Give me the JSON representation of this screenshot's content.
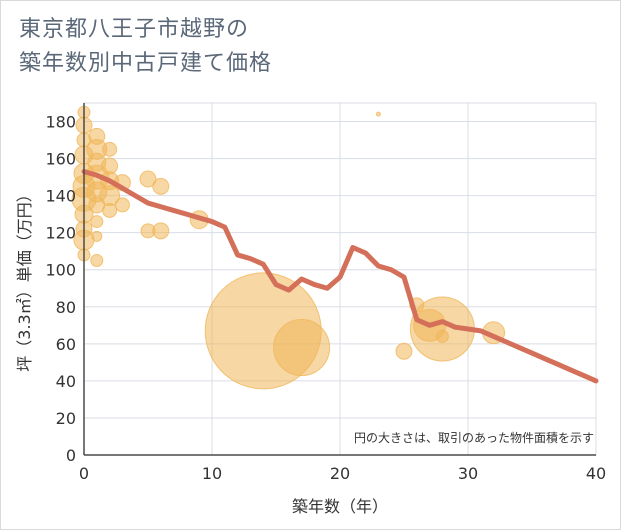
{
  "title_lines": [
    "東京都八王子市越野の",
    "築年数別中古戸建て価格"
  ],
  "chart_data": {
    "type": "scatter",
    "title": "東京都八王子市越野の築年数別中古戸建て価格",
    "xlabel": "築年数（年）",
    "ylabel": "坪（3.3㎡）単価（万円）",
    "xlim": [
      0,
      40
    ],
    "ylim": [
      0,
      190
    ],
    "xticks": [
      0,
      10,
      20,
      30,
      40
    ],
    "yticks": [
      0,
      20,
      40,
      60,
      80,
      100,
      120,
      140,
      160,
      180
    ],
    "note": "円の大きさは、取引のあった物件面積を示す",
    "colors": {
      "bubble": "#f0b75a",
      "line": "#d4705a",
      "grid": "#d9dde6",
      "axis": "#4a4a4a",
      "text": "#333333"
    },
    "bubbles": [
      {
        "x": 0,
        "y": 185,
        "r": 6
      },
      {
        "x": 0,
        "y": 178,
        "r": 8
      },
      {
        "x": 0,
        "y": 170,
        "r": 7
      },
      {
        "x": 0,
        "y": 162,
        "r": 9
      },
      {
        "x": 0,
        "y": 152,
        "r": 10
      },
      {
        "x": 0,
        "y": 145,
        "r": 11
      },
      {
        "x": 0,
        "y": 138,
        "r": 12
      },
      {
        "x": 0,
        "y": 130,
        "r": 9
      },
      {
        "x": 0,
        "y": 122,
        "r": 8
      },
      {
        "x": 0,
        "y": 116,
        "r": 10
      },
      {
        "x": 0,
        "y": 108,
        "r": 6
      },
      {
        "x": 1,
        "y": 172,
        "r": 8
      },
      {
        "x": 1,
        "y": 165,
        "r": 10
      },
      {
        "x": 1,
        "y": 158,
        "r": 9
      },
      {
        "x": 1,
        "y": 150,
        "r": 12
      },
      {
        "x": 1,
        "y": 142,
        "r": 10
      },
      {
        "x": 1,
        "y": 135,
        "r": 8
      },
      {
        "x": 1,
        "y": 126,
        "r": 6
      },
      {
        "x": 1,
        "y": 118,
        "r": 5
      },
      {
        "x": 1,
        "y": 105,
        "r": 6
      },
      {
        "x": 2,
        "y": 165,
        "r": 7
      },
      {
        "x": 2,
        "y": 156,
        "r": 8
      },
      {
        "x": 2,
        "y": 148,
        "r": 9
      },
      {
        "x": 2,
        "y": 140,
        "r": 10
      },
      {
        "x": 2,
        "y": 132,
        "r": 7
      },
      {
        "x": 3,
        "y": 147,
        "r": 8
      },
      {
        "x": 3,
        "y": 135,
        "r": 7
      },
      {
        "x": 5,
        "y": 149,
        "r": 8
      },
      {
        "x": 5,
        "y": 121,
        "r": 7
      },
      {
        "x": 6,
        "y": 145,
        "r": 8
      },
      {
        "x": 6,
        "y": 121,
        "r": 8
      },
      {
        "x": 9,
        "y": 127,
        "r": 9
      },
      {
        "x": 14,
        "y": 67,
        "r": 58
      },
      {
        "x": 17,
        "y": 58,
        "r": 28
      },
      {
        "x": 23,
        "y": 184,
        "r": 2
      },
      {
        "x": 25,
        "y": 56,
        "r": 8
      },
      {
        "x": 26,
        "y": 81,
        "r": 7
      },
      {
        "x": 27,
        "y": 70,
        "r": 16
      },
      {
        "x": 28,
        "y": 68,
        "r": 32
      },
      {
        "x": 28,
        "y": 64,
        "r": 6
      },
      {
        "x": 32,
        "y": 66,
        "r": 11
      }
    ],
    "trend": {
      "x": [
        0,
        1,
        2,
        3,
        4,
        5,
        6,
        7,
        8,
        9,
        10,
        11,
        12,
        13,
        14,
        15,
        16,
        17,
        18,
        19,
        20,
        21,
        22,
        23,
        24,
        25,
        26,
        27,
        28,
        29,
        30,
        31,
        32,
        33,
        34,
        35,
        36,
        37,
        38,
        39,
        40
      ],
      "y": [
        153,
        151,
        148,
        144,
        140,
        136,
        134,
        132,
        130,
        128,
        126,
        123,
        108,
        106,
        103,
        92,
        89,
        95,
        92,
        90,
        96,
        112,
        109,
        102,
        100,
        96,
        73,
        70,
        72,
        69,
        68,
        67,
        64,
        61,
        58,
        55,
        52,
        49,
        46,
        43,
        40
      ]
    }
  }
}
